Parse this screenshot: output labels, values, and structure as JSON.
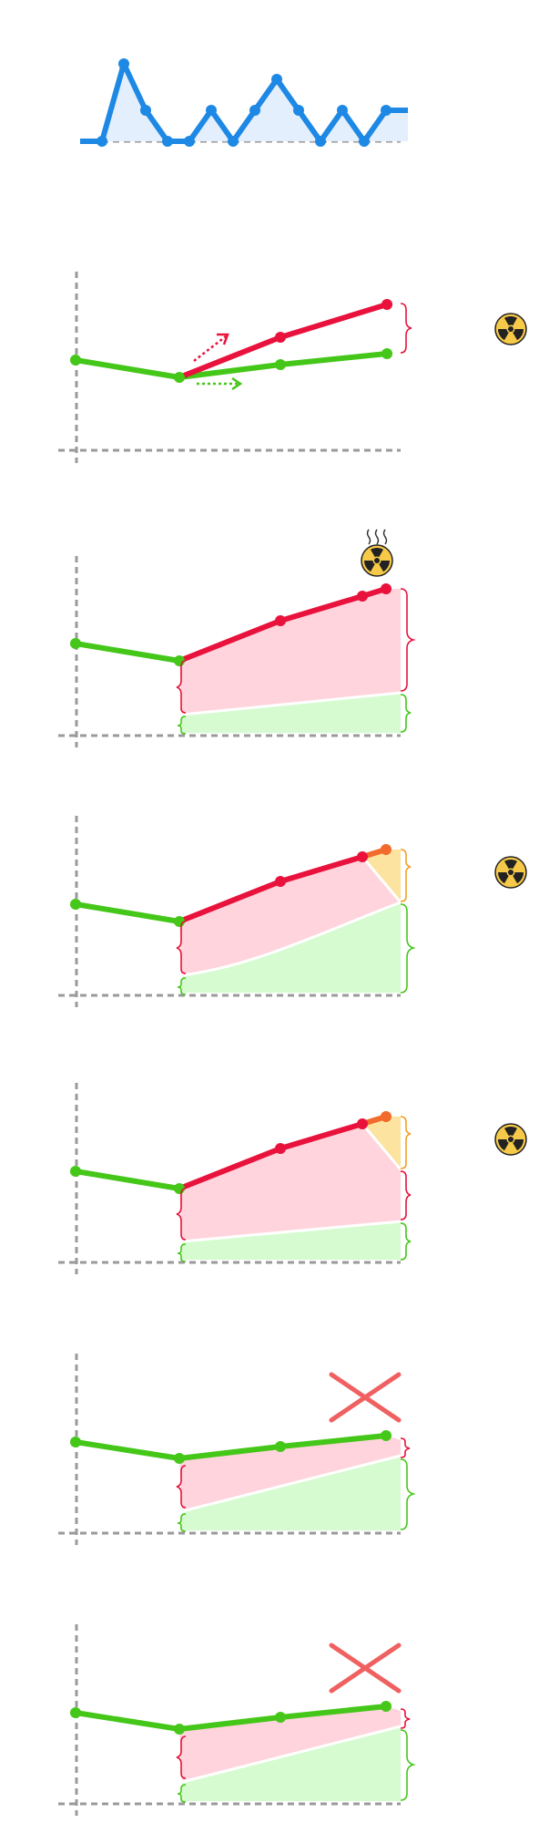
{
  "colors": {
    "green": "#44c718",
    "red": "#e8123c",
    "orange": "#f26a2c",
    "blue": "#1e88e5",
    "pink_area": "#ffd4dc",
    "green_area": "#d6fbd0",
    "yellow_area": "#fde3a0",
    "axis": "#9a9a9a",
    "cross": "#f06060",
    "radiation_yellow": "#f7c948"
  },
  "icons": {
    "radiation": "radiation-icon",
    "heat": "heat-waves-icon",
    "cross": "cross-icon",
    "arrow": "dotted-arrow-icon"
  },
  "panels": [
    {
      "id": "sparkline",
      "type": "line",
      "values": [
        0,
        0,
        5,
        2,
        0,
        0,
        2,
        0,
        2,
        4,
        2,
        0,
        2,
        0,
        2,
        2
      ]
    },
    {
      "id": "divergence",
      "type": "line",
      "shows_radiation_icon": true
    },
    {
      "id": "heated-gap",
      "type": "area",
      "shows_radiation_icon": true,
      "shows_heat_icon": true
    },
    {
      "id": "three-layer-curved",
      "type": "area",
      "shows_radiation_icon": true
    },
    {
      "id": "three-layer-straight",
      "type": "area",
      "shows_radiation_icon": true
    },
    {
      "id": "crossed-small",
      "type": "area",
      "shows_cross": true
    },
    {
      "id": "crossed-small-2",
      "type": "area",
      "shows_cross": true
    }
  ]
}
